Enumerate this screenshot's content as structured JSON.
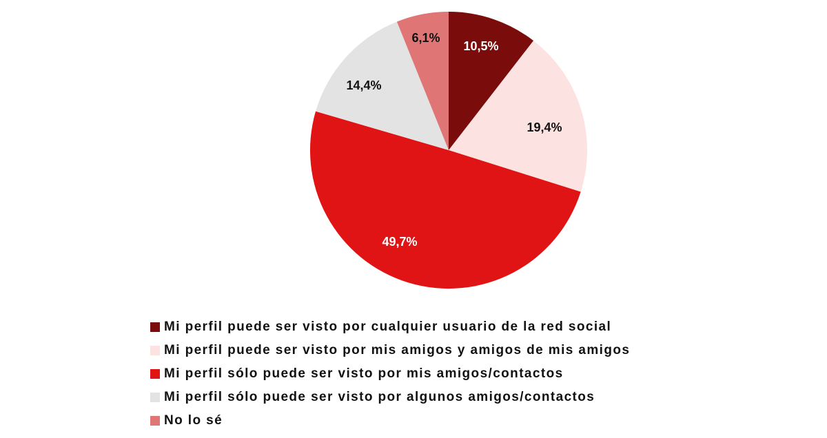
{
  "chart_data": {
    "type": "pie",
    "slices": [
      {
        "label": "Mi perfil puede ser visto por cualquier usuario de la red social",
        "value": 10.5,
        "value_label": "10,5%",
        "color": "#7a0c0c",
        "label_color": "#ffffff"
      },
      {
        "label": "Mi perfil puede ser visto por mis amigos y amigos de mis amigos",
        "value": 19.4,
        "value_label": "19,4%",
        "color": "#fde2e2",
        "label_color": "#111111"
      },
      {
        "label": "Mi perfil sólo puede ser visto por mis amigos/contactos",
        "value": 49.7,
        "value_label": "49,7%",
        "color": "#e01414",
        "label_color": "#ffffff"
      },
      {
        "label": "Mi perfil sólo puede ser visto por algunos amigos/contactos",
        "value": 14.4,
        "value_label": "14,4%",
        "color": "#e3e3e3",
        "label_color": "#111111"
      },
      {
        "label": "No lo sé",
        "value": 6.1,
        "value_label": "6,1%",
        "color": "#e07575",
        "label_color": "#111111"
      }
    ],
    "start_angle_deg": 0,
    "direction": "clockwise",
    "legend_position": "bottom"
  }
}
